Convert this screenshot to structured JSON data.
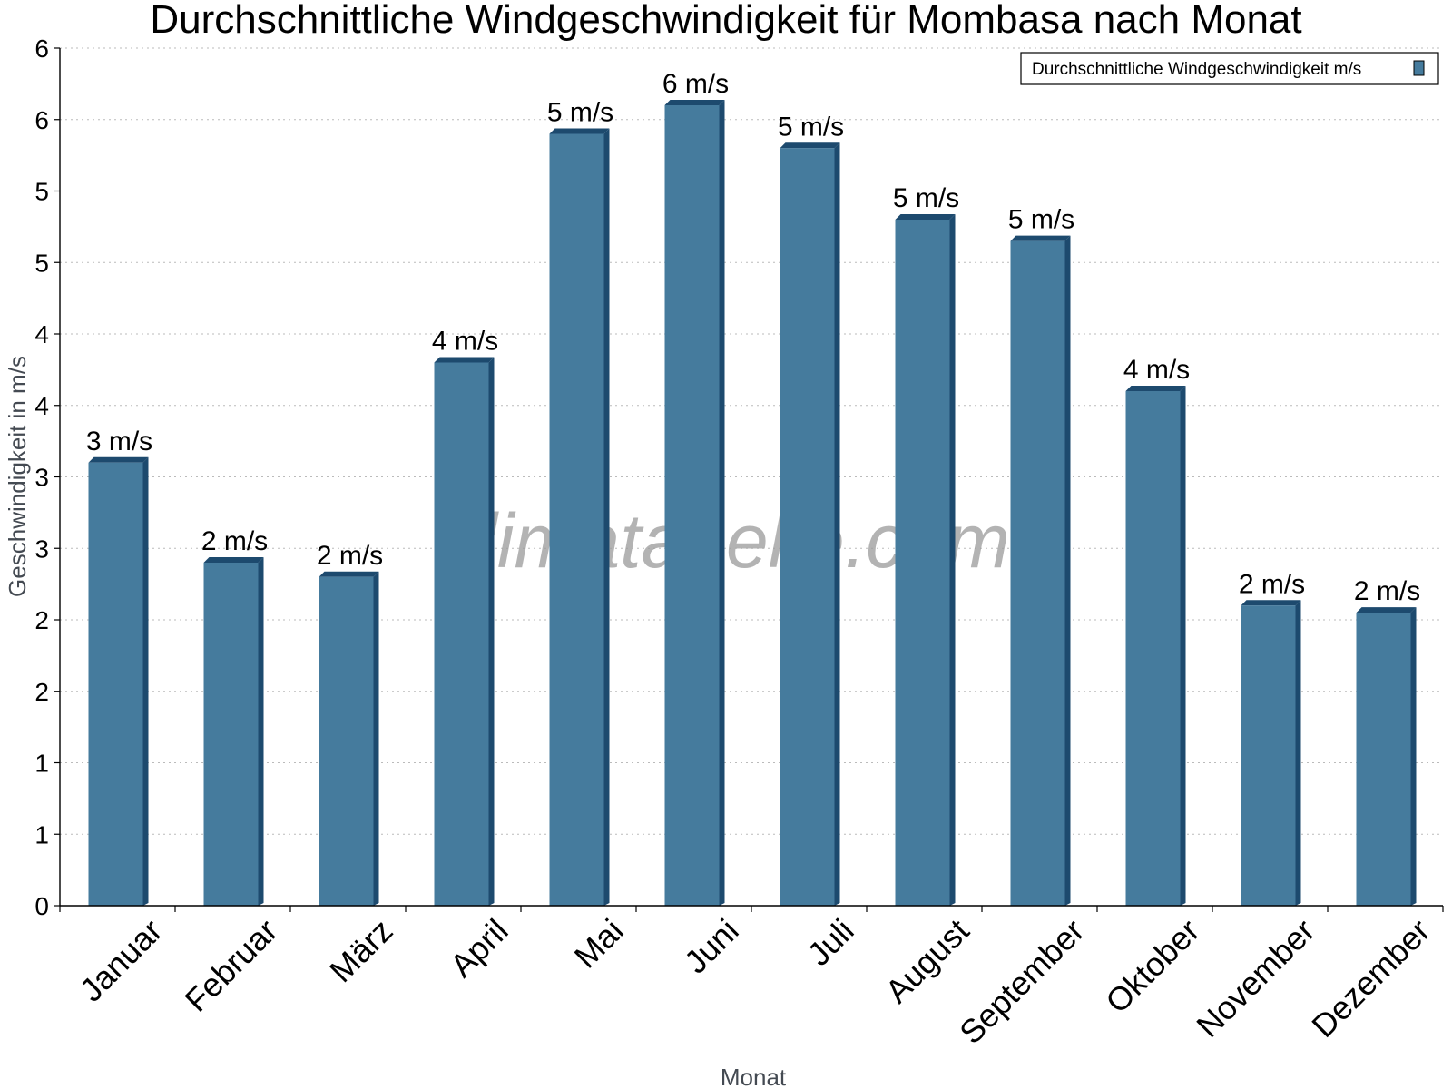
{
  "chart_data": {
    "type": "bar",
    "title": "Durchschnittliche Windgeschwindigkeit für Mombasa nach Monat",
    "xlabel": "Monat",
    "ylabel": "Geschwindigkeit in m/s",
    "categories": [
      "Januar",
      "Februar",
      "März",
      "April",
      "Mai",
      "Juni",
      "Juli",
      "August",
      "September",
      "Oktober",
      "November",
      "Dezember"
    ],
    "series": [
      {
        "name": "Durchschnittliche Windgeschwindigkeit m/s",
        "values": [
          3.1,
          2.4,
          2.3,
          3.8,
          5.4,
          5.6,
          5.3,
          4.8,
          4.65,
          3.6,
          2.1,
          2.05
        ],
        "labels": [
          "3 m/s",
          "2 m/s",
          "2 m/s",
          "4 m/s",
          "5 m/s",
          "6 m/s",
          "5 m/s",
          "5 m/s",
          "5 m/s",
          "4 m/s",
          "2 m/s",
          "2 m/s"
        ]
      }
    ],
    "ylim": [
      0,
      6
    ],
    "yticks": [
      0,
      0.5,
      1,
      1.5,
      2,
      2.5,
      3,
      3.5,
      4,
      4.5,
      5,
      5.5,
      6
    ],
    "ytick_labels": [
      "0",
      "1",
      "1",
      "2",
      "2",
      "3",
      "3",
      "4",
      "4",
      "5",
      "5",
      "6",
      "6"
    ],
    "grid": true,
    "legend_position": "top-right",
    "watermark": "klimatabelle.com",
    "colors": {
      "bar": "#457b9d",
      "bar_side": "#1d4a6e",
      "grid": "#bbbbbb",
      "axis": "#000000"
    }
  }
}
